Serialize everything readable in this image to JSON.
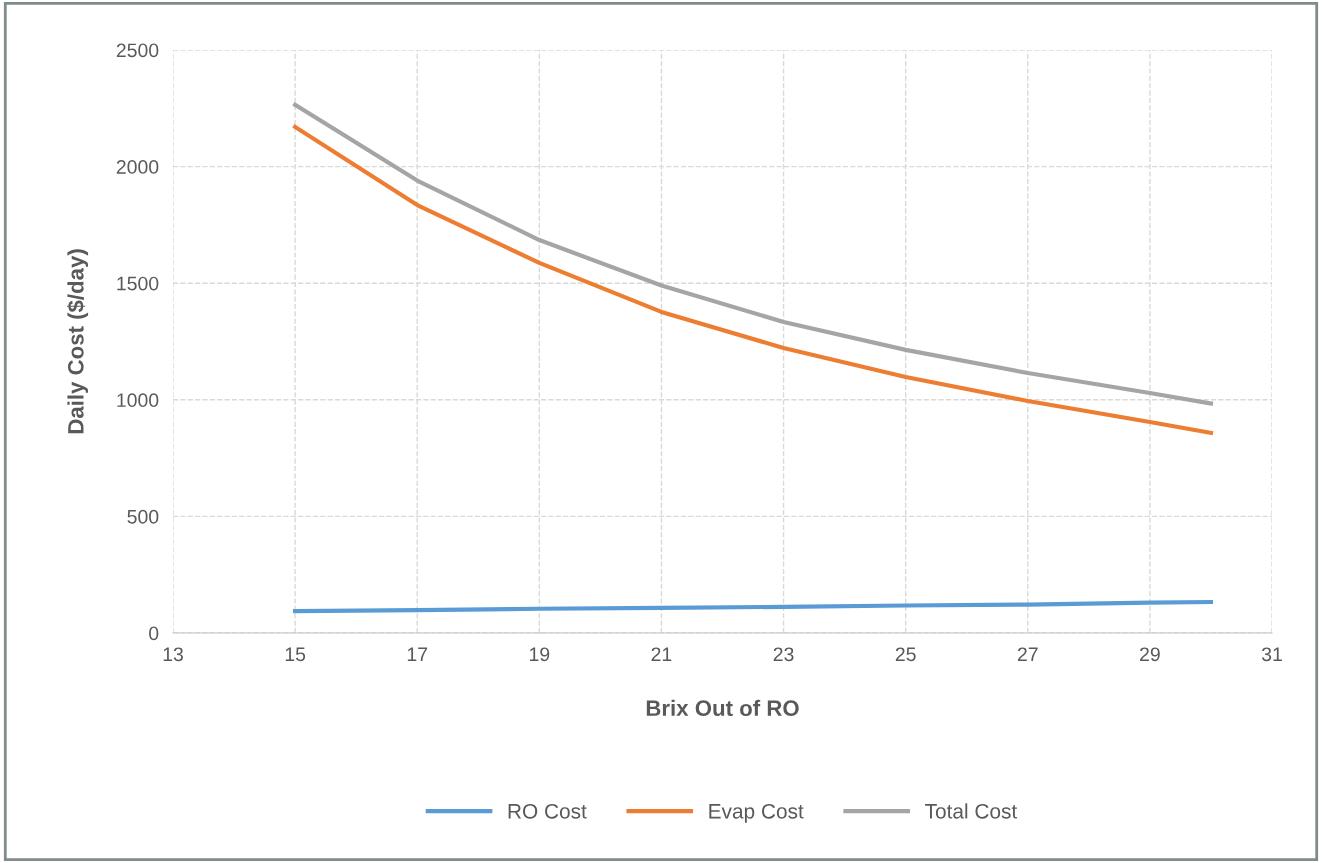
{
  "chart_data": {
    "type": "line",
    "xlabel": "Brix Out of RO",
    "ylabel": "Daily Cost ($/day)",
    "x": [
      15,
      17,
      19,
      21,
      23,
      25,
      27,
      29,
      30
    ],
    "series": [
      {
        "name": "RO Cost",
        "color": "#5b9bd5",
        "values": [
          94,
          98,
          104,
          108,
          112,
          118,
          122,
          130,
          133
        ]
      },
      {
        "name": "Evap Cost",
        "color": "#ed7d31",
        "values": [
          2170,
          1835,
          1587,
          1377,
          1222,
          1098,
          995,
          905,
          858
        ]
      },
      {
        "name": "Total Cost",
        "color": "#a5a5a5",
        "values": [
          2265,
          1940,
          1685,
          1490,
          1334,
          1214,
          1115,
          1029,
          984
        ]
      }
    ],
    "xlim": [
      13,
      31
    ],
    "xticks": [
      13,
      15,
      17,
      19,
      21,
      23,
      25,
      27,
      29,
      31
    ],
    "ylim": [
      0,
      2500
    ],
    "yticks": [
      0,
      500,
      1000,
      1500,
      2000,
      2500
    ],
    "grid": true,
    "legend": "bottom",
    "marker": "none",
    "line_style": "solid"
  }
}
